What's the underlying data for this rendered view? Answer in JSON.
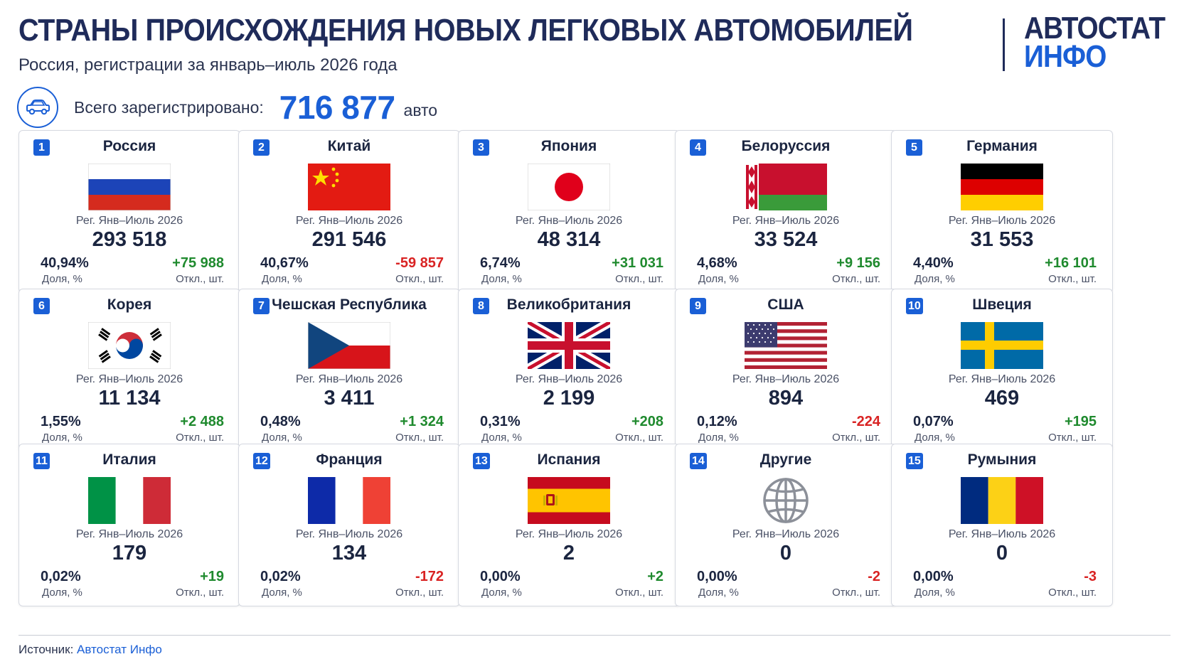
{
  "header": {
    "title": "СТРАНЫ ПРОИСХОЖДЕНИЯ НОВЫХ ЛЕГКОВЫХ АВТОМОБИЛЕЙ",
    "subtitle": "Россия, регистрации за январь–июль 2026 года"
  },
  "logo": {
    "line1": "АВТОСТАТ",
    "line2": "ИНФО"
  },
  "total": {
    "icon": "car-icon",
    "label": "Всего зарегистрировано:",
    "value": "716 877",
    "unit": "авто"
  },
  "labels": {
    "reg": "Рег. Янв–Июль 2026",
    "share": "Доля, %",
    "dev": "Откл., шт."
  },
  "colors": {
    "accent": "#1a5fd6",
    "positive": "#1f8a2e",
    "negative": "#d92323",
    "title": "#1f2b5a"
  },
  "countries": [
    {
      "rank": "1",
      "name": "Россия",
      "flag": "russia-flag-icon",
      "reg": "293 518",
      "share": "40,94%",
      "dev": "+75 988",
      "trend": "pos"
    },
    {
      "rank": "2",
      "name": "Китай",
      "flag": "china-flag-icon",
      "reg": "291 546",
      "share": "40,67%",
      "dev": "-59 857",
      "trend": "neg"
    },
    {
      "rank": "3",
      "name": "Япония",
      "flag": "japan-flag-icon",
      "reg": "48 314",
      "share": "6,74%",
      "dev": "+31 031",
      "trend": "pos"
    },
    {
      "rank": "4",
      "name": "Белоруссия",
      "flag": "belarus-flag-icon",
      "reg": "33 524",
      "share": "4,68%",
      "dev": "+9 156",
      "trend": "pos"
    },
    {
      "rank": "5",
      "name": "Германия",
      "flag": "germany-flag-icon",
      "reg": "31 553",
      "share": "4,40%",
      "dev": "+16 101",
      "trend": "pos"
    },
    {
      "rank": "6",
      "name": "Корея",
      "flag": "korea-flag-icon",
      "reg": "11 134",
      "share": "1,55%",
      "dev": "+2 488",
      "trend": "pos"
    },
    {
      "rank": "7",
      "name": "Чешская Республика",
      "flag": "czech-flag-icon",
      "reg": "3 411",
      "share": "0,48%",
      "dev": "+1 324",
      "trend": "pos"
    },
    {
      "rank": "8",
      "name": "Великобритания",
      "flag": "uk-flag-icon",
      "reg": "2 199",
      "share": "0,31%",
      "dev": "+208",
      "trend": "pos"
    },
    {
      "rank": "9",
      "name": "США",
      "flag": "usa-flag-icon",
      "reg": "894",
      "share": "0,12%",
      "dev": "-224",
      "trend": "neg"
    },
    {
      "rank": "10",
      "name": "Швеция",
      "flag": "sweden-flag-icon",
      "reg": "469",
      "share": "0,07%",
      "dev": "+195",
      "trend": "pos"
    },
    {
      "rank": "11",
      "name": "Италия",
      "flag": "italy-flag-icon",
      "reg": "179",
      "share": "0,02%",
      "dev": "+19",
      "trend": "pos"
    },
    {
      "rank": "12",
      "name": "Франция",
      "flag": "france-flag-icon",
      "reg": "134",
      "share": "0,02%",
      "dev": "-172",
      "trend": "neg"
    },
    {
      "rank": "13",
      "name": "Испания",
      "flag": "spain-flag-icon",
      "reg": "2",
      "share": "0,00%",
      "dev": "+2",
      "trend": "pos"
    },
    {
      "rank": "14",
      "name": "Другие",
      "flag": "globe-icon",
      "reg": "0",
      "share": "0,00%",
      "dev": "-2",
      "trend": "neg"
    },
    {
      "rank": "15",
      "name": "Румыния",
      "flag": "romania-flag-icon",
      "reg": "0",
      "share": "0,00%",
      "dev": "-3",
      "trend": "neg"
    }
  ],
  "footer": {
    "source_label": "Источник:",
    "source_name": "Автостат Инфо"
  }
}
